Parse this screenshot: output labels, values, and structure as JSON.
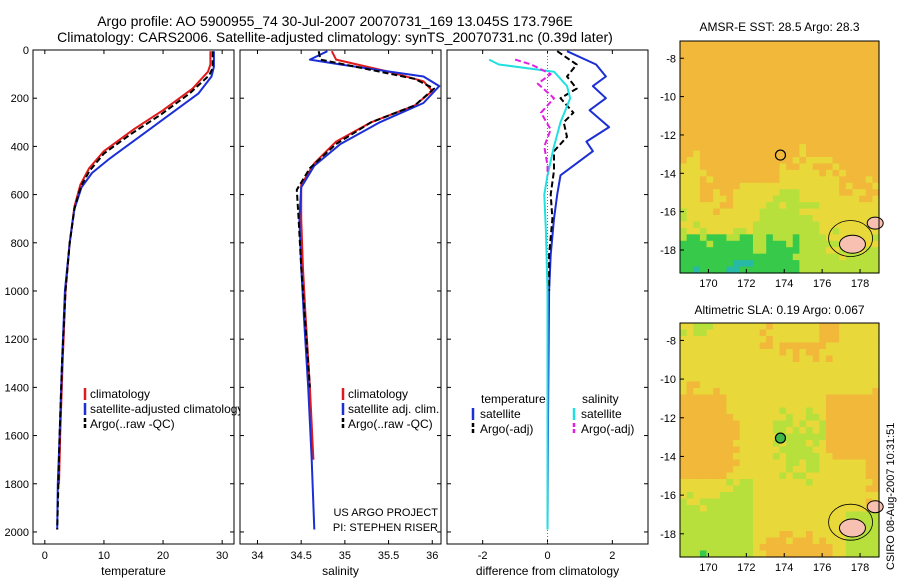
{
  "header": {
    "line1": "Argo profile: AO 5900955_74 30-Jul-2007 20070731_169 13.045S 173.796E",
    "line2": "Climatology: CARS2006. Satellite-adjusted climatology: synTS_20070731.nc (0.39d later)"
  },
  "sidebar": {
    "stamp": "CSIRO 08-Aug-2007 10:31:51"
  },
  "colors": {
    "climatology": "#e11b1b",
    "satellite": "#1c2fd6",
    "argo": "#000000",
    "salinity_satellite": "#22e0e0",
    "salinity_argo": "#e020e0"
  },
  "chart_data": [
    {
      "type": "line",
      "id": "temperature_profile",
      "xlabel": "temperature",
      "ylabel": "",
      "xlim": [
        -2,
        32
      ],
      "ylim": [
        2050,
        0
      ],
      "xticks": [
        "0",
        "10",
        "20",
        "30"
      ],
      "xtick_values": [
        0,
        10,
        20,
        30
      ],
      "yticks": [
        "0",
        "200",
        "400",
        "600",
        "800",
        "1000",
        "1200",
        "1400",
        "1600",
        "1800",
        "2000"
      ],
      "ytick_values": [
        0,
        200,
        400,
        600,
        800,
        1000,
        1200,
        1400,
        1600,
        1800,
        2000
      ],
      "legend": [
        "climatology",
        "satellite-adjusted climatology",
        "Argo(..raw -QC)"
      ],
      "series": [
        {
          "name": "climatology",
          "color": "#e11b1b",
          "style": "solid",
          "points": [
            [
              28.0,
              5
            ],
            [
              28.0,
              60
            ],
            [
              27.6,
              90
            ],
            [
              25,
              160
            ],
            [
              20,
              250
            ],
            [
              15,
              330
            ],
            [
              10,
              420
            ],
            [
              7.5,
              490
            ],
            [
              6,
              560
            ],
            [
              5,
              650
            ],
            [
              4.2,
              800
            ],
            [
              3.5,
              1000
            ],
            [
              3,
              1300
            ],
            [
              2.6,
              1600
            ],
            [
              2.4,
              1800
            ]
          ]
        },
        {
          "name": "satellite-adjusted climatology",
          "color": "#1c2fd6",
          "style": "solid",
          "points": [
            [
              28.6,
              5
            ],
            [
              28.6,
              70
            ],
            [
              28.2,
              110
            ],
            [
              26,
              180
            ],
            [
              21,
              270
            ],
            [
              16,
              360
            ],
            [
              11,
              450
            ],
            [
              8,
              510
            ],
            [
              6.2,
              570
            ],
            [
              5,
              660
            ],
            [
              4.2,
              800
            ],
            [
              3.4,
              1000
            ],
            [
              2.9,
              1300
            ],
            [
              2.5,
              1600
            ],
            [
              2.2,
              1800
            ],
            [
              2.1,
              1990
            ]
          ]
        },
        {
          "name": "Argo(..raw -QC)",
          "color": "#000000",
          "style": "dashed",
          "points": [
            [
              28.4,
              5
            ],
            [
              28.4,
              75
            ],
            [
              27.8,
              105
            ],
            [
              24.5,
              180
            ],
            [
              19.5,
              270
            ],
            [
              14.5,
              350
            ],
            [
              10,
              430
            ],
            [
              7.6,
              500
            ],
            [
              6.1,
              565
            ],
            [
              5,
              660
            ],
            [
              4.2,
              800
            ],
            [
              3.5,
              1000
            ],
            [
              2.9,
              1300
            ],
            [
              2.5,
              1600
            ],
            [
              2.3,
              1800
            ],
            [
              2.1,
              1990
            ]
          ]
        }
      ]
    },
    {
      "type": "line",
      "id": "salinity_profile",
      "xlabel": "salinity",
      "xlim": [
        33.8,
        36.1
      ],
      "ylim": [
        2050,
        0
      ],
      "xticks": [
        "34",
        "34.5",
        "35",
        "35.5",
        "36"
      ],
      "xtick_values": [
        34,
        34.5,
        35,
        35.5,
        36
      ],
      "legend": [
        "climatology",
        "satellite adj. clim.",
        "Argo(..raw -QC)"
      ],
      "annotations": [
        "US ARGO PROJECT",
        "PI: STEPHEN RISER"
      ],
      "series": [
        {
          "name": "climatology",
          "color": "#e11b1b",
          "style": "solid",
          "points": [
            [
              34.85,
              5
            ],
            [
              34.9,
              40
            ],
            [
              35.5,
              90
            ],
            [
              35.9,
              130
            ],
            [
              36.0,
              170
            ],
            [
              35.8,
              230
            ],
            [
              35.3,
              300
            ],
            [
              34.9,
              380
            ],
            [
              34.65,
              470
            ],
            [
              34.5,
              560
            ],
            [
              34.5,
              700
            ],
            [
              34.52,
              900
            ],
            [
              34.55,
              1100
            ],
            [
              34.6,
              1400
            ],
            [
              34.64,
              1700
            ]
          ]
        },
        {
          "name": "satellite adj. clim.",
          "color": "#1c2fd6",
          "style": "solid",
          "points": [
            [
              34.8,
              5
            ],
            [
              34.6,
              40
            ],
            [
              34.95,
              60
            ],
            [
              35.9,
              110
            ],
            [
              36.08,
              150
            ],
            [
              35.9,
              220
            ],
            [
              35.4,
              300
            ],
            [
              34.95,
              390
            ],
            [
              34.65,
              480
            ],
            [
              34.5,
              570
            ],
            [
              34.48,
              700
            ],
            [
              34.5,
              900
            ],
            [
              34.53,
              1100
            ],
            [
              34.58,
              1400
            ],
            [
              34.62,
              1700
            ],
            [
              34.65,
              1990
            ]
          ]
        },
        {
          "name": "Argo(..raw -QC)",
          "color": "#000000",
          "style": "dashed",
          "points": [
            [
              34.7,
              5
            ],
            [
              34.72,
              40
            ],
            [
              35.2,
              75
            ],
            [
              35.8,
              120
            ],
            [
              36.02,
              160
            ],
            [
              35.8,
              230
            ],
            [
              35.3,
              300
            ],
            [
              34.9,
              390
            ],
            [
              34.6,
              490
            ],
            [
              34.45,
              580
            ],
            [
              34.47,
              700
            ],
            [
              34.5,
              900
            ],
            [
              34.54,
              1100
            ],
            [
              34.6,
              1400
            ]
          ]
        }
      ]
    },
    {
      "type": "line",
      "id": "difference_profile",
      "xlabel": "difference from climatology",
      "xlim": [
        -3.1,
        3.1
      ],
      "ylim": [
        2050,
        0
      ],
      "xticks": [
        "-2",
        "0",
        "2"
      ],
      "xtick_values": [
        -2,
        0,
        2
      ],
      "legend_headers": [
        "temperature",
        "salinity"
      ],
      "legend": [
        "satellite",
        "Argo(-adj)",
        "satellite",
        "Argo(-adj)"
      ],
      "series": [
        {
          "name": "temperature satellite",
          "color": "#1c2fd6",
          "style": "solid",
          "points": [
            [
              0.6,
              5
            ],
            [
              1.5,
              60
            ],
            [
              1.8,
              110
            ],
            [
              1.4,
              150
            ],
            [
              1.8,
              200
            ],
            [
              1.3,
              250
            ],
            [
              1.9,
              320
            ],
            [
              1.2,
              380
            ],
            [
              1.4,
              420
            ],
            [
              0.4,
              520
            ],
            [
              0.3,
              600
            ],
            [
              0.2,
              700
            ],
            [
              0.1,
              850
            ],
            [
              0.05,
              1000
            ],
            [
              0.02,
              1500
            ],
            [
              0.0,
              1990
            ]
          ]
        },
        {
          "name": "temperature Argo(-adj)",
          "color": "#000000",
          "style": "dashed",
          "points": [
            [
              0.3,
              5
            ],
            [
              0.9,
              60
            ],
            [
              0.6,
              110
            ],
            [
              0.9,
              160
            ],
            [
              0.4,
              200
            ],
            [
              0.8,
              260
            ],
            [
              0.5,
              300
            ],
            [
              0.6,
              360
            ],
            [
              0.2,
              420
            ],
            [
              0.2,
              500
            ],
            [
              0.1,
              600
            ],
            [
              0.15,
              700
            ],
            [
              0.05,
              850
            ],
            [
              0.05,
              1000
            ]
          ]
        },
        {
          "name": "salinity satellite",
          "color": "#22e0e0",
          "style": "solid",
          "points": [
            [
              -1.8,
              40
            ],
            [
              -1.5,
              60
            ],
            [
              0.2,
              90
            ],
            [
              0.6,
              150
            ],
            [
              0.7,
              200
            ],
            [
              0.4,
              300
            ],
            [
              0.2,
              400
            ],
            [
              0.0,
              520
            ],
            [
              -0.1,
              600
            ],
            [
              -0.05,
              750
            ],
            [
              0.0,
              1000
            ],
            [
              0.0,
              1500
            ],
            [
              0.0,
              1990
            ]
          ]
        },
        {
          "name": "salinity Argo(-adj)",
          "color": "#e020e0",
          "style": "dashed",
          "points": [
            [
              -1.0,
              40
            ],
            [
              -0.5,
              60
            ],
            [
              0.1,
              100
            ],
            [
              -0.3,
              140
            ],
            [
              0.2,
              200
            ],
            [
              -0.2,
              260
            ],
            [
              0.1,
              330
            ],
            [
              -0.1,
              400
            ],
            [
              0.0,
              480
            ],
            [
              0.0,
              520
            ]
          ]
        }
      ]
    },
    {
      "type": "heatmap",
      "id": "sst_map",
      "title": "AMSR-E SST: 28.5 Argo: 28.3",
      "xlim": [
        168.5,
        179.0
      ],
      "ylim": [
        -19.2,
        -7.1
      ],
      "xticks": [
        "170",
        "172",
        "174",
        "176",
        "178"
      ],
      "xtick_values": [
        170,
        172,
        174,
        176,
        178
      ],
      "yticks": [
        "-8",
        "-10",
        "-12",
        "-14",
        "-16",
        "-18"
      ],
      "ytick_values": [
        -8,
        -10,
        -12,
        -14,
        -16,
        -18
      ],
      "marker": {
        "lon": 173.8,
        "lat": -13.05,
        "shape": "circle"
      },
      "field_colors": [
        "#f1b83a",
        "#e9d83a",
        "#b7e03c",
        "#36c94a",
        "#28b8a8",
        "#3aa6e8"
      ],
      "land_color": "#f7c0b0"
    },
    {
      "type": "heatmap",
      "id": "sla_map",
      "title": "Altimetric SLA: 0.19 Argo: 0.067",
      "xlim": [
        168.5,
        179.0
      ],
      "ylim": [
        -19.2,
        -7.1
      ],
      "xticks": [
        "170",
        "172",
        "174",
        "176",
        "178"
      ],
      "xtick_values": [
        170,
        172,
        174,
        176,
        178
      ],
      "yticks": [
        "-8",
        "-10",
        "-12",
        "-14",
        "-16",
        "-18"
      ],
      "ytick_values": [
        -8,
        -10,
        -12,
        -14,
        -16,
        -18
      ],
      "marker": {
        "lon": 173.8,
        "lat": -13.05,
        "shape": "filled-circle"
      },
      "field_colors": [
        "#f1b83a",
        "#e9d83a",
        "#b7e03c",
        "#36c94a"
      ],
      "land_color": "#f7c0b0"
    }
  ]
}
